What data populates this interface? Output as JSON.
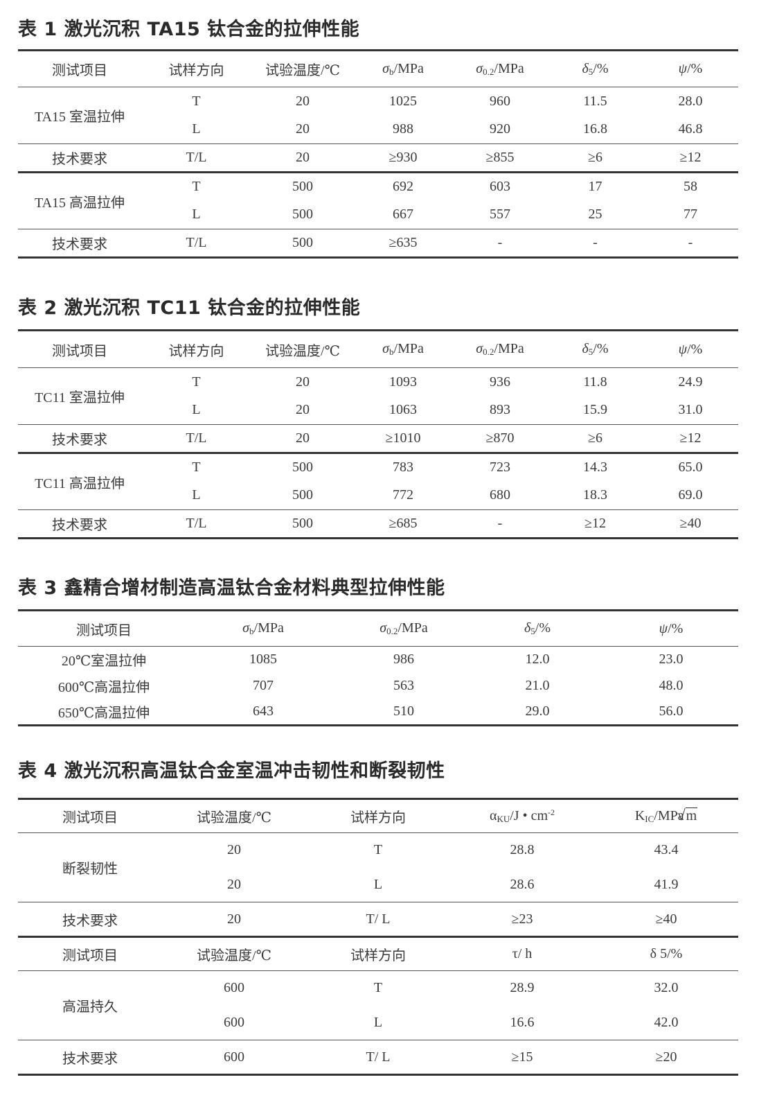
{
  "tables": [
    {
      "title": "表 1  激光沉积 TA15 钛合金的拉伸性能",
      "header": [
        [
          {
            "t": "测试项目"
          }
        ],
        [
          {
            "t": "试样方向"
          }
        ],
        [
          {
            "t": "试验温度/℃"
          }
        ],
        [
          {
            "i": "σ"
          },
          {
            "sub": "b"
          },
          {
            "t": "/MPa"
          }
        ],
        [
          {
            "i": "σ"
          },
          {
            "sub": "0.2"
          },
          {
            "t": "/MPa"
          }
        ],
        [
          {
            "i": "δ"
          },
          {
            "sub": "5"
          },
          {
            "t": "/%"
          }
        ],
        [
          {
            "i": "ψ"
          },
          {
            "t": "/%"
          }
        ]
      ],
      "groups": [
        {
          "label": "TA15 室温拉伸",
          "rows": [
            [
              "T",
              "20",
              "1025",
              "960",
              "11.5",
              "28.0"
            ],
            [
              "L",
              "20",
              "988",
              "920",
              "16.8",
              "46.8"
            ]
          ]
        },
        {
          "label": "技术要求",
          "rows": [
            [
              "T/L",
              "20",
              "≥930",
              "≥855",
              "≥6",
              "≥12"
            ]
          ]
        },
        {
          "label": "TA15 高温拉伸",
          "rows": [
            [
              "T",
              "500",
              "692",
              "603",
              "17",
              "58"
            ],
            [
              "L",
              "500",
              "667",
              "557",
              "25",
              "77"
            ]
          ]
        },
        {
          "label": "技术要求",
          "rows": [
            [
              "T/L",
              "500",
              "≥635",
              "-",
              "-",
              "-"
            ]
          ]
        }
      ]
    },
    {
      "title": "表 2  激光沉积 TC11 钛合金的拉伸性能",
      "header": [
        [
          {
            "t": "测试项目"
          }
        ],
        [
          {
            "t": "试样方向"
          }
        ],
        [
          {
            "t": "试验温度/℃"
          }
        ],
        [
          {
            "i": "σ"
          },
          {
            "sub": "b"
          },
          {
            "t": "/MPa"
          }
        ],
        [
          {
            "i": "σ"
          },
          {
            "sub": "0.2"
          },
          {
            "t": "/MPa"
          }
        ],
        [
          {
            "i": "δ"
          },
          {
            "sub": "5"
          },
          {
            "t": "/%"
          }
        ],
        [
          {
            "i": "ψ"
          },
          {
            "t": "/%"
          }
        ]
      ],
      "groups": [
        {
          "label": "TC11 室温拉伸",
          "rows": [
            [
              "T",
              "20",
              "1093",
              "936",
              "11.8",
              "24.9"
            ],
            [
              "L",
              "20",
              "1063",
              "893",
              "15.9",
              "31.0"
            ]
          ]
        },
        {
          "label": "技术要求",
          "rows": [
            [
              "T/L",
              "20",
              "≥1010",
              "≥870",
              "≥6",
              "≥12"
            ]
          ]
        },
        {
          "label": "TC11 高温拉伸",
          "rows": [
            [
              "T",
              "500",
              "783",
              "723",
              "14.3",
              "65.0"
            ],
            [
              "L",
              "500",
              "772",
              "680",
              "18.3",
              "69.0"
            ]
          ]
        },
        {
          "label": "技术要求",
          "rows": [
            [
              "T/L",
              "500",
              "≥685",
              "-",
              "≥12",
              "≥40"
            ]
          ]
        }
      ]
    },
    {
      "title": "表 3  鑫精合增材制造高温钛合金材料典型拉伸性能",
      "header": [
        [
          {
            "t": "测试项目"
          }
        ],
        [
          {
            "i": "σ"
          },
          {
            "sub": "b"
          },
          {
            "t": "/MPa"
          }
        ],
        [
          {
            "i": "σ"
          },
          {
            "sub": "0.2"
          },
          {
            "t": "/MPa"
          }
        ],
        [
          {
            "i": "δ"
          },
          {
            "sub": "5"
          },
          {
            "t": "/%"
          }
        ],
        [
          {
            "i": "ψ"
          },
          {
            "t": "/%"
          }
        ]
      ],
      "groups": [
        {
          "label": "20℃室温拉伸",
          "rows": [
            [
              "1085",
              "986",
              "12.0",
              "23.0"
            ]
          ]
        },
        {
          "label": "600℃高温拉伸",
          "rows": [
            [
              "707",
              "563",
              "21.0",
              "48.0"
            ]
          ]
        },
        {
          "label": "650℃高温拉伸",
          "rows": [
            [
              "643",
              "510",
              "29.0",
              "56.0"
            ]
          ]
        }
      ]
    },
    {
      "title": "表 4  激光沉积高温钛合金室温冲击韧性和断裂韧性",
      "header": [
        [
          {
            "t": "测试项目"
          }
        ],
        [
          {
            "t": "试验温度/℃"
          }
        ],
        [
          {
            "t": "试样方向"
          }
        ],
        [
          {
            "t": "α"
          },
          {
            "sub": "KU"
          },
          {
            "t": "/J • cm"
          },
          {
            "sup": "-2"
          }
        ],
        [
          {
            "t": "K"
          },
          {
            "sub": "IC"
          },
          {
            "t": "/MPa"
          },
          {
            "sqrt": "m"
          }
        ]
      ],
      "groups": [
        {
          "label": "断裂韧性",
          "rows": [
            [
              "20",
              "T",
              "28.8",
              "43.4"
            ],
            [
              "20",
              "L",
              "28.6",
              "41.9"
            ]
          ]
        },
        {
          "label": "技术要求",
          "rows": [
            [
              "20",
              "T/ L",
              "≥23",
              "≥40"
            ]
          ]
        },
        {
          "header": [
            [
              {
                "t": "测试项目"
              }
            ],
            [
              {
                "t": "试验温度/℃"
              }
            ],
            [
              {
                "t": "试样方向"
              }
            ],
            [
              {
                "t": "τ/ h"
              }
            ],
            [
              {
                "t": "δ 5/%"
              }
            ]
          ]
        },
        {
          "label": "高温持久",
          "rows": [
            [
              "600",
              "T",
              "28.9",
              "32.0"
            ],
            [
              "600",
              "L",
              "16.6",
              "42.0"
            ]
          ]
        },
        {
          "label": "技术要求",
          "rows": [
            [
              "600",
              "T/ L",
              "≥15",
              "≥20"
            ]
          ]
        }
      ]
    }
  ]
}
